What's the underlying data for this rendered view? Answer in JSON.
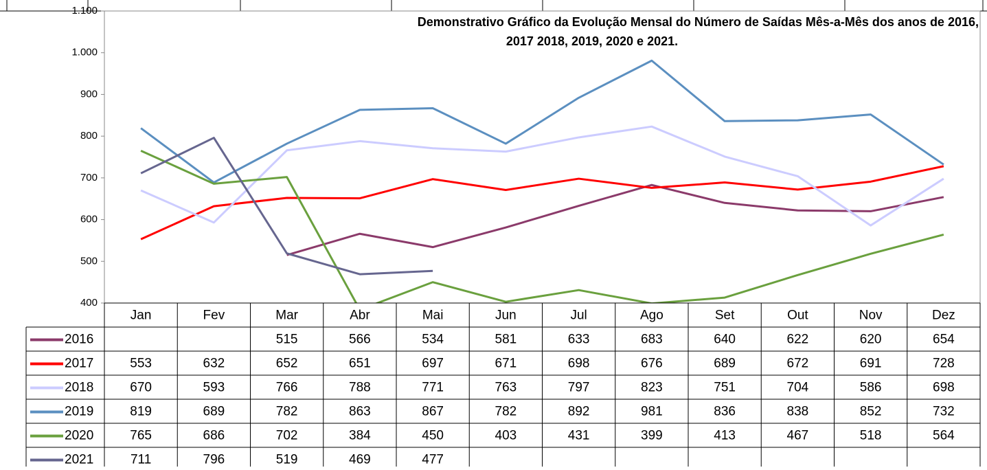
{
  "chart_data": {
    "type": "line",
    "title": [
      "Demonstrativo Gráfico da Evolução Mensal do Número de Saídas Mês-a-Mês dos anos de  2016,",
      "2017 2018, 2019, 2020 e 2021."
    ],
    "categories": [
      "Jan",
      "Fev",
      "Mar",
      "Abr",
      "Mai",
      "Jun",
      "Jul",
      "Ago",
      "Set",
      "Out",
      "Nov",
      "Dez"
    ],
    "series": [
      {
        "name": "2016",
        "color": "#8b3a6a",
        "values": [
          null,
          null,
          515,
          566,
          534,
          581,
          633,
          683,
          640,
          622,
          620,
          654
        ]
      },
      {
        "name": "2017",
        "color": "#ff0000",
        "values": [
          553,
          632,
          652,
          651,
          697,
          671,
          698,
          676,
          689,
          672,
          691,
          728
        ]
      },
      {
        "name": "2018",
        "color": "#ccccff",
        "values": [
          670,
          593,
          766,
          788,
          771,
          763,
          797,
          823,
          751,
          704,
          586,
          698
        ]
      },
      {
        "name": "2019",
        "color": "#5b8fc0",
        "values": [
          819,
          689,
          782,
          863,
          867,
          782,
          892,
          981,
          836,
          838,
          852,
          732
        ]
      },
      {
        "name": "2020",
        "color": "#6aa03e",
        "values": [
          765,
          686,
          702,
          384,
          450,
          403,
          431,
          399,
          413,
          467,
          518,
          564
        ]
      },
      {
        "name": "2021",
        "color": "#66668f",
        "values": [
          711,
          796,
          519,
          469,
          477,
          null,
          null,
          null,
          null,
          null,
          null,
          null
        ]
      }
    ],
    "ylim": [
      400,
      1100
    ],
    "yticks": [
      400,
      500,
      600,
      700,
      800,
      900,
      {
        "value": 1000,
        "label": "1.000"
      },
      {
        "value": 1100,
        "label": "1.100"
      }
    ],
    "grid": false
  }
}
